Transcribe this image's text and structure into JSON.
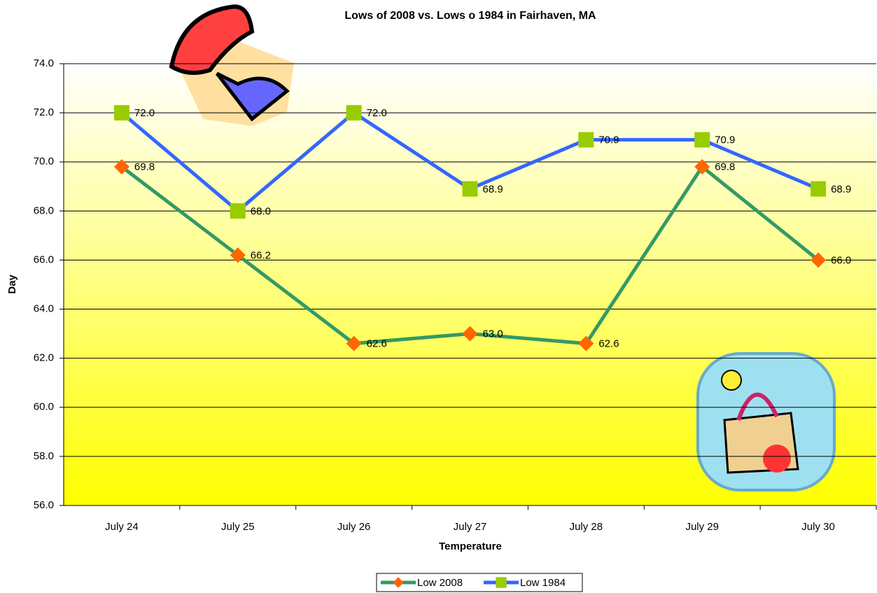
{
  "chart_data": {
    "type": "line",
    "title": "Lows of 2008 vs. Lows o 1984 in Fairhaven, MA",
    "x_label": "Temperature",
    "y_label": "Day",
    "categories": [
      "July 24",
      "July 25",
      "July 26",
      "July 27",
      "July 28",
      "July 29",
      "July 30"
    ],
    "series": [
      {
        "name": "Low 2008",
        "color": "#339966",
        "marker": "diamond",
        "marker_color": "#ff6600",
        "values": [
          69.8,
          66.2,
          62.6,
          63.0,
          62.6,
          69.8,
          66.0
        ],
        "value_labels": [
          "69.8",
          "66.2",
          "62.6",
          "63.0",
          "62.6",
          "69.8",
          "66.0"
        ]
      },
      {
        "name": "Low 1984",
        "color": "#3366ff",
        "marker": "square",
        "marker_color": "#99cc00",
        "values": [
          72.0,
          68.0,
          72.0,
          68.9,
          70.9,
          70.9,
          68.9
        ],
        "value_labels": [
          "72.0",
          "68.0",
          "72.0",
          "68.9",
          "70.9",
          "70.9",
          "68.9"
        ]
      }
    ],
    "ylim": [
      56,
      74
    ],
    "yticks": [
      {
        "value": 56,
        "label": "56.0"
      },
      {
        "value": 58,
        "label": "58.0"
      },
      {
        "value": 60,
        "label": "60.0"
      },
      {
        "value": 62,
        "label": "62.0"
      },
      {
        "value": 64,
        "label": "64.0"
      },
      {
        "value": 66,
        "label": "66.0"
      },
      {
        "value": 68,
        "label": "68.0"
      },
      {
        "value": 70,
        "label": "70.0"
      },
      {
        "value": 72,
        "label": "72.0"
      },
      {
        "value": 74,
        "label": "74.0"
      }
    ],
    "grid": true,
    "legend": "bottom"
  }
}
